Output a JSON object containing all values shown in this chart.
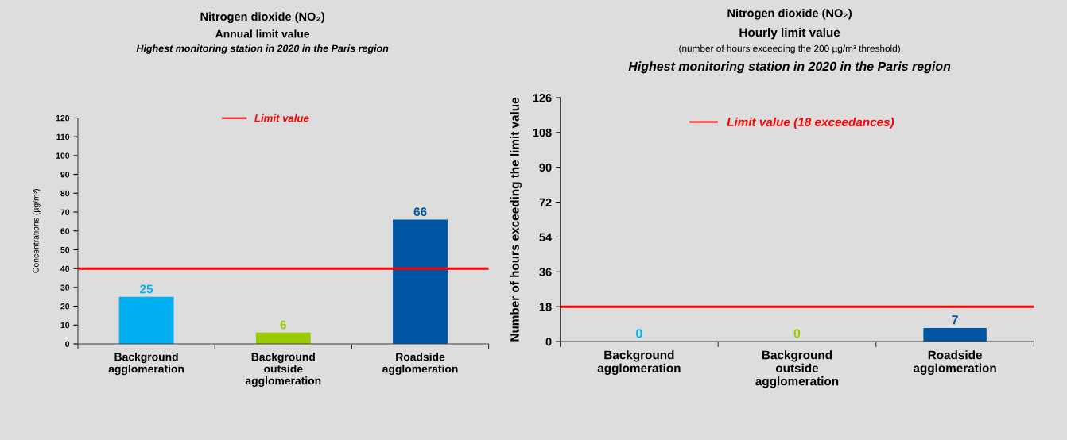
{
  "chart_data": [
    {
      "type": "bar",
      "title": "Nitrogen dioxide (NO₂)",
      "subtitle": "Annual limit value",
      "annotations": [
        "Highest monitoring station in 2020 in the Paris region"
      ],
      "ylabel": "Concentrations (µg/m³)",
      "categories": [
        "Background agglomeration",
        "Background outside agglomeration",
        "Roadside agglomeration"
      ],
      "values": [
        25,
        6,
        66
      ],
      "colors": [
        "#00b0f0",
        "#99cc00",
        "#0056a4"
      ],
      "ylim": [
        0,
        120
      ],
      "yticks": [
        0,
        10,
        20,
        30,
        40,
        50,
        60,
        70,
        80,
        90,
        100,
        110,
        120
      ],
      "data_labels": true,
      "ref_lines": [
        {
          "axis": "y",
          "value": 40,
          "label": "Limit value",
          "color": "#ff0000"
        }
      ],
      "legend": "top",
      "grid": false
    },
    {
      "type": "bar",
      "title": "Nitrogen dioxide (NO₂)",
      "subtitle": "Hourly limit value",
      "annotations": [
        "(number of hours exceeding the 200 µg/m³ threshold)",
        "Highest monitoring station in 2020 in the Paris region"
      ],
      "ylabel": "Number of hours exceeding the limit value",
      "categories": [
        "Background agglomeration",
        "Background outside agglomeration",
        "Roadside agglomeration"
      ],
      "values": [
        0,
        0,
        7
      ],
      "colors": [
        "#00b0f0",
        "#99cc00",
        "#0056a4"
      ],
      "ylim": [
        0,
        126
      ],
      "yticks": [
        0,
        18,
        36,
        54,
        72,
        90,
        108,
        126
      ],
      "data_labels": true,
      "ref_lines": [
        {
          "axis": "y",
          "value": 18,
          "label": "Limit value (18 exceedances)",
          "color": "#ff0000"
        }
      ],
      "legend": "top",
      "grid": false
    }
  ]
}
